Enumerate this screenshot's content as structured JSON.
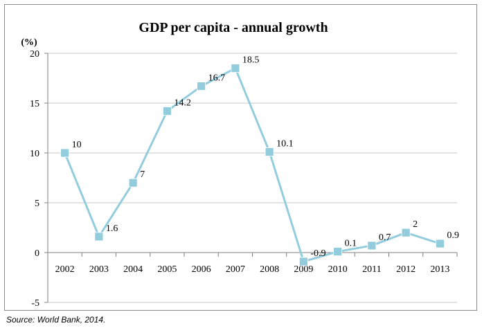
{
  "chart_data": {
    "type": "line",
    "title": "GDP per capita - annual growth",
    "ylabel": "(%)",
    "xlabel": "",
    "categories": [
      "2002",
      "2003",
      "2004",
      "2005",
      "2006",
      "2007",
      "2008",
      "2009",
      "2010",
      "2011",
      "2012",
      "2013"
    ],
    "series": [
      {
        "values": [
          10,
          1.6,
          7,
          14.2,
          16.7,
          18.5,
          10.1,
          -0.9,
          0.1,
          0.7,
          2,
          0.9
        ]
      }
    ],
    "data_labels": [
      "10",
      "1.6",
      "7",
      "14.2",
      "16.7",
      "18.5",
      "10.1",
      "-0.9",
      "0.1",
      "0.7",
      "2",
      "0.9"
    ],
    "y_ticks": [
      "-5",
      "0",
      "5",
      "10",
      "15",
      "20"
    ],
    "ylim": [
      -5,
      20
    ],
    "grid": "horizontal",
    "legend": "none",
    "colors": {
      "series": "#93cddd",
      "marker": "#93cddd",
      "grid": "#c8c8c8",
      "axis": "#7f7f7f"
    }
  },
  "source": "Source: World Bank, 2014."
}
